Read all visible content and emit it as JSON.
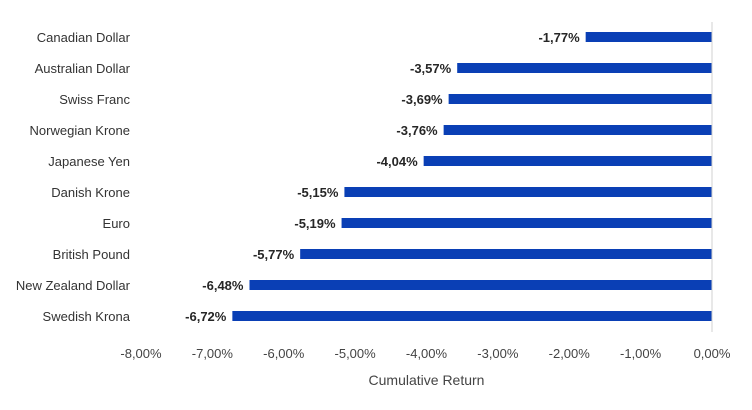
{
  "chart_data": {
    "type": "bar",
    "orientation": "horizontal",
    "title": "",
    "xlabel": "Cumulative Return",
    "ylabel": "",
    "bar_color": "#0a3fb5",
    "xlim": [
      -8.0,
      0.0
    ],
    "grid": false,
    "legend": "none",
    "categories": [
      "Canadian Dollar",
      "Australian Dollar",
      "Swiss Franc",
      "Norwegian Krone",
      "Japanese Yen",
      "Danish Krone",
      "Euro",
      "British Pound",
      "New Zealand Dollar",
      "Swedish Krona"
    ],
    "values": [
      -1.77,
      -3.57,
      -3.69,
      -3.76,
      -4.04,
      -5.15,
      -5.19,
      -5.77,
      -6.48,
      -6.72
    ],
    "value_labels": [
      "-1,77%",
      "-3,57%",
      "-3,69%",
      "-3,76%",
      "-4,04%",
      "-5,15%",
      "-5,19%",
      "-5,77%",
      "-6,48%",
      "-6,72%"
    ],
    "x_ticks": [
      -8,
      -7,
      -6,
      -5,
      -4,
      -3,
      -2,
      -1,
      0
    ],
    "x_tick_labels": [
      "-8,00%",
      "-7,00%",
      "-6,00%",
      "-5,00%",
      "-4,00%",
      "-3,00%",
      "-2,00%",
      "-1,00%",
      "0,00%"
    ]
  }
}
